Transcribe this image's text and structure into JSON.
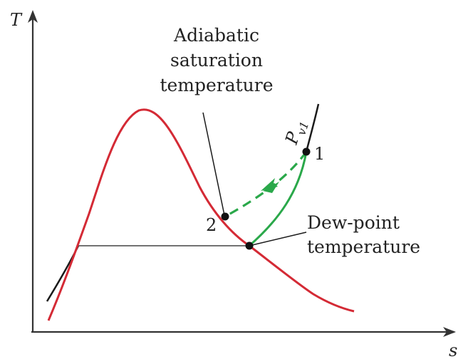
{
  "axes": {
    "y_label": "T",
    "x_label": "s"
  },
  "labels": {
    "adiabatic_line1": "Adiabatic",
    "adiabatic_line2": "saturation",
    "adiabatic_line3": "temperature",
    "dewpoint_line1": "Dew-point",
    "dewpoint_line2": "temperature",
    "pressure_main": "P",
    "pressure_sub": "v1",
    "state1": "1",
    "state2": "2"
  },
  "colors": {
    "saturation_dome": "#d42a35",
    "process": "#2aa84a",
    "isobar": "#1a1a1a",
    "axis": "#333333"
  }
}
